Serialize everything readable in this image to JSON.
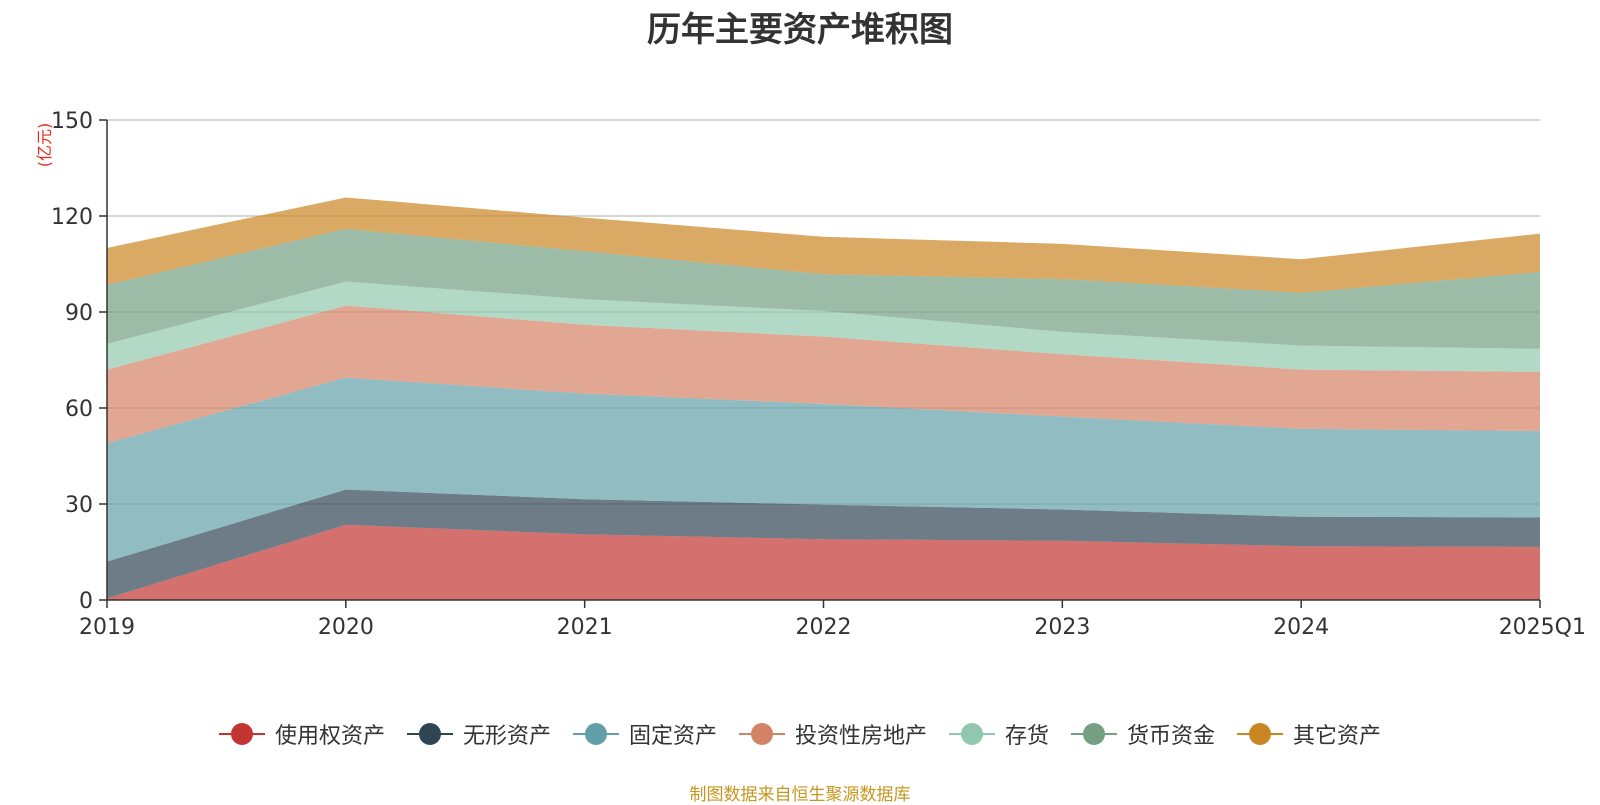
{
  "chart_data": {
    "type": "area",
    "stacked": true,
    "title": "历年主要资产堆积图",
    "y_unit": "(亿元)",
    "x": [
      "2019",
      "2020",
      "2021",
      "2022",
      "2023",
      "2024",
      "2025Q1"
    ],
    "ylim": [
      0,
      150
    ],
    "yticks": [
      0,
      30,
      60,
      90,
      120,
      150
    ],
    "grid": true,
    "legend_position": "bottom",
    "series": [
      {
        "name": "使用权资产",
        "color": "#c23531",
        "values": [
          0.5,
          23.5,
          20.5,
          19.0,
          18.5,
          16.8,
          16.6
        ]
      },
      {
        "name": "无形资产",
        "color": "#2f4554",
        "values": [
          11.5,
          11.0,
          11.0,
          10.8,
          9.8,
          9.2,
          9.2
        ]
      },
      {
        "name": "固定资产",
        "color": "#61a0a8",
        "values": [
          37.0,
          35.0,
          33.0,
          31.5,
          29.0,
          27.5,
          27.0
        ]
      },
      {
        "name": "投资性房地产",
        "color": "#d48265",
        "values": [
          23.0,
          22.5,
          21.5,
          21.0,
          19.5,
          18.5,
          18.5
        ]
      },
      {
        "name": "存货",
        "color": "#91c7ae",
        "values": [
          8.0,
          7.5,
          8.0,
          8.0,
          7.0,
          7.5,
          7.2
        ]
      },
      {
        "name": "货币资金",
        "color": "#749f83",
        "values": [
          18.5,
          16.5,
          15.0,
          11.5,
          16.5,
          16.5,
          24.0
        ]
      },
      {
        "name": "其它资产",
        "color": "#ca8622",
        "values": [
          11.5,
          9.8,
          10.5,
          11.7,
          11.0,
          10.5,
          12.0
        ]
      }
    ]
  },
  "source_note": "制图数据来自恒生聚源数据库"
}
